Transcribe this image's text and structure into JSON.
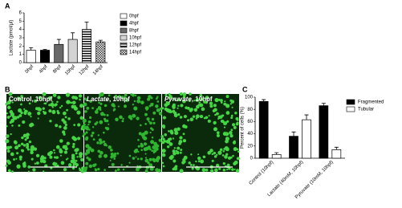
{
  "panel_labels": [
    "A",
    "B",
    "C"
  ],
  "images": [
    {
      "name": "Control",
      "suffix": ", 10hpf",
      "italic": false
    },
    {
      "name": "Lactate",
      "suffix": ", 10hpf",
      "italic": true
    },
    {
      "name": "Pyruvate",
      "suffix": ", 10hpf",
      "italic": true
    }
  ],
  "chart_data": [
    {
      "type": "bar",
      "y_label": "Lactate (pmol/μl)",
      "categories": [
        "0hpf",
        "4hpf",
        "8hpf",
        "10hpf",
        "12hpf",
        "14hpf"
      ],
      "values": [
        1.5,
        1.5,
        2.2,
        2.8,
        4.0,
        2.5
      ],
      "errors": [
        0.3,
        0.1,
        0.6,
        0.8,
        0.9,
        0.2
      ],
      "fills": [
        "white",
        "black",
        "dimgray",
        "lightgray",
        "hstripes",
        "checker"
      ],
      "ylim": [
        0,
        6
      ],
      "yticks": [
        0,
        1,
        2,
        3,
        4,
        5,
        6
      ],
      "legend": "right"
    },
    {
      "type": "grouped_bar",
      "y_label": "Percent of cells (%)",
      "categories": [
        "Control (10hpf)",
        "Lactate (40mM, 10hpf)",
        "Pyruvate (10mM, 10hpf)"
      ],
      "series": [
        {
          "name": "Fragmented",
          "color": "black",
          "values": [
            93,
            36,
            86
          ],
          "errors": [
            3,
            7,
            4
          ]
        },
        {
          "name": "Tubular",
          "color": "white",
          "values": [
            6,
            63,
            14
          ],
          "errors": [
            3,
            8,
            4
          ]
        }
      ],
      "ylim": [
        0,
        100
      ],
      "yticks": [
        0,
        20,
        40,
        60,
        80,
        100
      ],
      "legend": "top-right"
    }
  ]
}
